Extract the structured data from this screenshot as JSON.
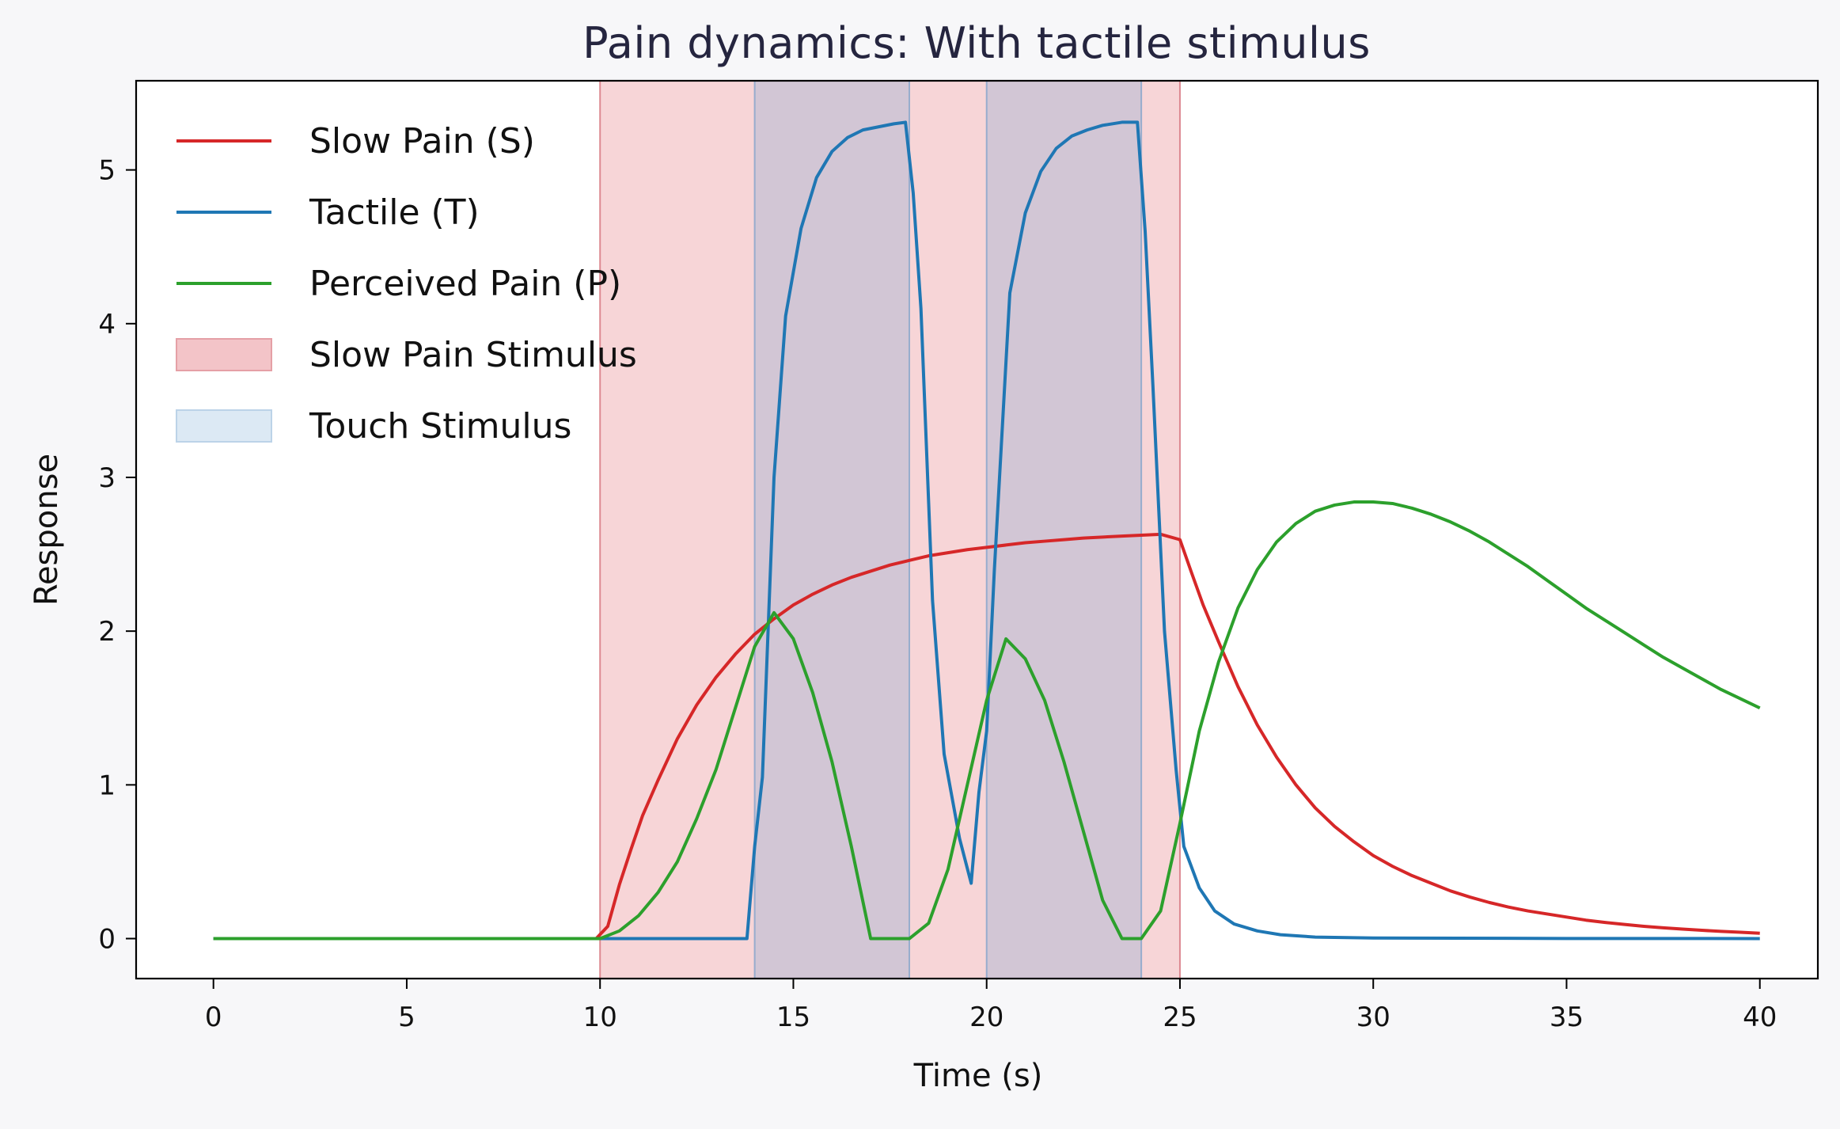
{
  "chart_data": {
    "type": "line",
    "title": "Pain dynamics: With tactile stimulus",
    "xlabel": "Time (s)",
    "ylabel": "Response",
    "xlim": [
      -2,
      41.5
    ],
    "ylim": [
      -0.26,
      5.58
    ],
    "x_ticks": [
      0,
      5,
      10,
      15,
      20,
      25,
      30,
      35,
      40
    ],
    "y_ticks": [
      0,
      1,
      2,
      3,
      4,
      5
    ],
    "grid": false,
    "legend_position": "upper-left",
    "series": [
      {
        "name": "Slow Pain (S)",
        "color": "#d62728",
        "x": [
          0,
          9.9,
          10.2,
          10.5,
          10.8,
          11.1,
          11.5,
          12,
          12.5,
          13,
          13.5,
          14,
          14.5,
          15,
          15.5,
          16,
          16.5,
          17,
          17.5,
          18,
          18.5,
          19,
          19.5,
          20,
          20.5,
          21,
          21.5,
          22,
          22.5,
          23,
          23.5,
          24,
          24.5,
          25,
          25.3,
          25.6,
          26,
          26.5,
          27,
          27.5,
          28,
          28.5,
          29,
          29.5,
          30,
          30.5,
          31,
          31.5,
          32,
          32.5,
          33,
          33.5,
          34,
          34.5,
          35,
          35.5,
          36,
          36.5,
          37,
          37.5,
          38,
          38.5,
          39,
          39.5,
          40
        ],
        "values": [
          0,
          0,
          0.08,
          0.35,
          0.58,
          0.8,
          1.03,
          1.3,
          1.52,
          1.7,
          1.85,
          1.98,
          2.08,
          2.17,
          2.24,
          2.3,
          2.35,
          2.39,
          2.43,
          2.46,
          2.49,
          2.51,
          2.53,
          2.545,
          2.56,
          2.575,
          2.585,
          2.595,
          2.605,
          2.612,
          2.618,
          2.624,
          2.63,
          2.595,
          2.38,
          2.17,
          1.93,
          1.64,
          1.39,
          1.18,
          1.0,
          0.85,
          0.73,
          0.63,
          0.54,
          0.47,
          0.41,
          0.36,
          0.31,
          0.27,
          0.235,
          0.205,
          0.18,
          0.16,
          0.14,
          0.12,
          0.105,
          0.092,
          0.08,
          0.07,
          0.062,
          0.054,
          0.047,
          0.041,
          0.035
        ]
      },
      {
        "name": "Tactile (T)",
        "color": "#1f77b4",
        "x": [
          0,
          13.8,
          14.0,
          14.2,
          14.5,
          14.8,
          15.2,
          15.6,
          16.0,
          16.4,
          16.8,
          17.2,
          17.6,
          17.9,
          18.1,
          18.3,
          18.6,
          18.9,
          19.3,
          19.6,
          19.8,
          20.0,
          20.2,
          20.4,
          20.6,
          21.0,
          21.4,
          21.8,
          22.2,
          22.6,
          23.0,
          23.5,
          23.9,
          24.1,
          24.3,
          24.6,
          24.9,
          25.1,
          25.5,
          25.9,
          26.4,
          27.0,
          27.6,
          28.5,
          30,
          35,
          40
        ],
        "values": [
          0,
          0,
          0.6,
          1.05,
          3.0,
          4.05,
          4.62,
          4.95,
          5.12,
          5.21,
          5.26,
          5.28,
          5.3,
          5.31,
          4.85,
          4.1,
          2.2,
          1.2,
          0.65,
          0.36,
          0.95,
          1.35,
          2.4,
          3.3,
          4.2,
          4.72,
          4.99,
          5.14,
          5.22,
          5.26,
          5.29,
          5.31,
          5.31,
          4.6,
          3.6,
          2.0,
          1.1,
          0.6,
          0.33,
          0.18,
          0.095,
          0.05,
          0.025,
          0.01,
          0.004,
          0.001,
          0.0003
        ]
      },
      {
        "name": "Perceived Pain (P)",
        "color": "#2ca02c",
        "x": [
          0,
          10.0,
          10.5,
          11.0,
          11.5,
          12.0,
          12.5,
          13.0,
          13.5,
          14.0,
          14.5,
          15.0,
          15.5,
          16.0,
          16.5,
          17.0,
          18.0,
          18.5,
          19.0,
          19.5,
          20.0,
          20.5,
          21.0,
          21.5,
          22.0,
          22.5,
          23.0,
          23.5,
          24.0,
          24.5,
          25.0,
          25.5,
          26.0,
          26.5,
          27.0,
          27.5,
          28.0,
          28.5,
          29.0,
          29.5,
          30.0,
          30.5,
          31.0,
          31.5,
          32.0,
          32.5,
          33.0,
          33.5,
          34.0,
          34.5,
          35.0,
          35.5,
          36.0,
          36.5,
          37.0,
          37.5,
          38.0,
          38.5,
          39.0,
          39.5,
          40.0
        ],
        "values": [
          0,
          0,
          0.05,
          0.15,
          0.3,
          0.5,
          0.78,
          1.1,
          1.5,
          1.9,
          2.12,
          1.95,
          1.6,
          1.15,
          0.6,
          0.0,
          0.0,
          0.1,
          0.45,
          1.0,
          1.55,
          1.95,
          1.82,
          1.55,
          1.15,
          0.7,
          0.25,
          0.0,
          0.0,
          0.18,
          0.75,
          1.35,
          1.8,
          2.15,
          2.4,
          2.58,
          2.7,
          2.78,
          2.82,
          2.84,
          2.84,
          2.83,
          2.8,
          2.76,
          2.71,
          2.65,
          2.58,
          2.5,
          2.42,
          2.33,
          2.24,
          2.15,
          2.07,
          1.99,
          1.91,
          1.83,
          1.76,
          1.69,
          1.62,
          1.56,
          1.5
        ]
      }
    ],
    "shaded_regions": [
      {
        "name": "Slow Pain Stimulus",
        "start": 10,
        "end": 25,
        "color": "#e8878c",
        "opacity": 0.35,
        "edge": "#d98088"
      },
      {
        "name": "Touch Stimulus",
        "start": 14,
        "end": 18,
        "color": "#7fa4cf",
        "opacity": 0.3,
        "edge": "#8ea9cc"
      },
      {
        "name": "Touch Stimulus",
        "start": 20,
        "end": 24,
        "color": "#7fa4cf",
        "opacity": 0.3,
        "edge": "#8ea9cc"
      }
    ],
    "legend_entries": [
      {
        "label": "Slow Pain (S)",
        "kind": "line",
        "color": "#d62728"
      },
      {
        "label": "Tactile (T)",
        "kind": "line",
        "color": "#1f77b4"
      },
      {
        "label": "Perceived Pain (P)",
        "kind": "line",
        "color": "#2ca02c"
      },
      {
        "label": "Slow Pain Stimulus",
        "kind": "patch",
        "color": "#f3c4c8",
        "edge": "#e5a0a6"
      },
      {
        "label": "Touch Stimulus",
        "kind": "patch",
        "color": "#dce9f4",
        "edge": "#bcd3e8"
      }
    ]
  }
}
